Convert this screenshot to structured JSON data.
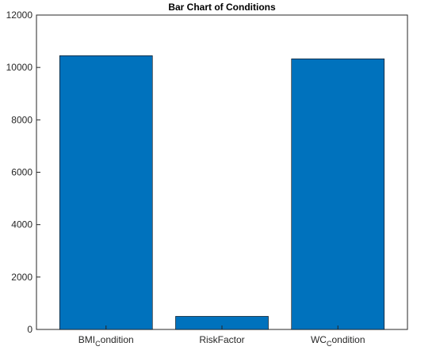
{
  "chart_data": {
    "type": "bar",
    "title": "Bar Chart of Conditions",
    "xlabel": "",
    "ylabel": "",
    "categories": [
      {
        "main": "BMI",
        "sub": "C",
        "rest": "ondition"
      },
      {
        "main": "RiskFactor",
        "sub": "",
        "rest": ""
      },
      {
        "main": "WC",
        "sub": "C",
        "rest": "ondition"
      }
    ],
    "values": [
      10450,
      500,
      10330
    ],
    "ylim": [
      0,
      12000
    ],
    "yticks": [
      0,
      2000,
      4000,
      6000,
      8000,
      10000,
      12000
    ],
    "ytick_labels": [
      "0",
      "2000",
      "4000",
      "6000",
      "8000",
      "10000",
      "12000"
    ],
    "bar_color": "#0072BD",
    "grid": false
  }
}
